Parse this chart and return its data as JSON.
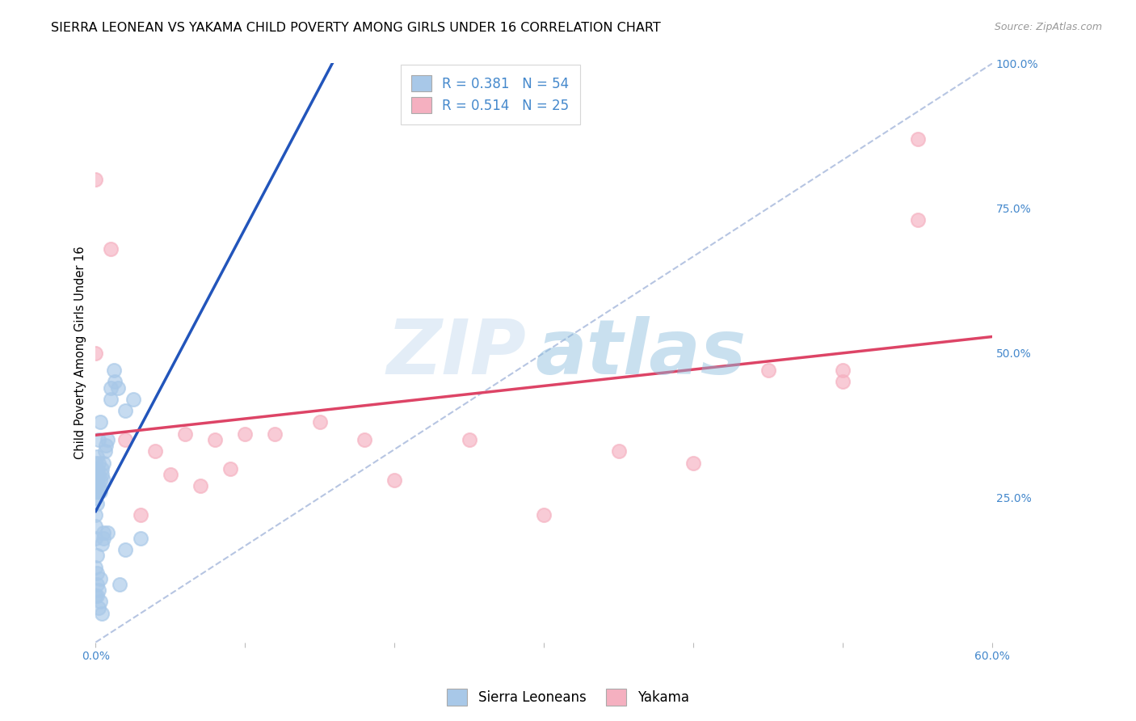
{
  "title": "SIERRA LEONEAN VS YAKAMA CHILD POVERTY AMONG GIRLS UNDER 16 CORRELATION CHART",
  "source": "Source: ZipAtlas.com",
  "ylabel": "Child Poverty Among Girls Under 16",
  "watermark_zip": "ZIP",
  "watermark_atlas": "atlas",
  "xlim": [
    0.0,
    0.6
  ],
  "ylim": [
    0.0,
    1.0
  ],
  "xtick_pos": [
    0.0,
    0.1,
    0.2,
    0.3,
    0.4,
    0.5,
    0.6
  ],
  "xtick_labels": [
    "0.0%",
    "",
    "",
    "",
    "",
    "",
    "60.0%"
  ],
  "ytick_pos": [
    0.0,
    0.25,
    0.5,
    0.75,
    1.0
  ],
  "ytick_labels": [
    "",
    "25.0%",
    "50.0%",
    "75.0%",
    "100.0%"
  ],
  "blue_scatter_color": "#a8c8e8",
  "pink_scatter_color": "#f5b0c0",
  "blue_line_color": "#2255bb",
  "pink_line_color": "#dd4466",
  "dashed_line_color": "#aabbdd",
  "axis_tick_color": "#4488cc",
  "grid_color": "#cccccc",
  "background_color": "#ffffff",
  "legend_R_blue": "R = 0.381",
  "legend_N_blue": "N = 54",
  "legend_R_pink": "R = 0.514",
  "legend_N_pink": "N = 25",
  "legend_label_blue": "Sierra Leoneans",
  "legend_label_pink": "Yakama",
  "sierra_x": [
    0.0,
    0.0,
    0.0,
    0.0,
    0.0,
    0.0,
    0.0,
    0.0,
    0.0,
    0.0,
    0.001,
    0.001,
    0.001,
    0.001,
    0.001,
    0.001,
    0.001,
    0.001,
    0.002,
    0.002,
    0.002,
    0.002,
    0.002,
    0.003,
    0.003,
    0.003,
    0.003,
    0.004,
    0.004,
    0.004,
    0.005,
    0.005,
    0.005,
    0.006,
    0.007,
    0.008,
    0.01,
    0.01,
    0.012,
    0.013,
    0.015,
    0.016,
    0.02,
    0.02,
    0.025,
    0.03,
    0.0,
    0.0,
    0.001,
    0.002,
    0.003,
    0.004,
    0.005,
    0.008
  ],
  "sierra_y": [
    0.3,
    0.28,
    0.26,
    0.29,
    0.31,
    0.25,
    0.27,
    0.22,
    0.2,
    0.18,
    0.3,
    0.28,
    0.26,
    0.24,
    0.15,
    0.12,
    0.1,
    0.08,
    0.29,
    0.27,
    0.31,
    0.09,
    0.06,
    0.28,
    0.26,
    0.11,
    0.07,
    0.3,
    0.29,
    0.05,
    0.31,
    0.28,
    0.18,
    0.33,
    0.34,
    0.35,
    0.44,
    0.42,
    0.47,
    0.45,
    0.44,
    0.1,
    0.4,
    0.16,
    0.42,
    0.18,
    0.13,
    0.08,
    0.32,
    0.35,
    0.38,
    0.17,
    0.19,
    0.19
  ],
  "yakama_x": [
    0.0,
    0.0,
    0.01,
    0.02,
    0.03,
    0.04,
    0.05,
    0.06,
    0.07,
    0.08,
    0.09,
    0.1,
    0.12,
    0.15,
    0.18,
    0.2,
    0.25,
    0.3,
    0.35,
    0.4,
    0.45,
    0.5,
    0.5,
    0.55,
    0.55
  ],
  "yakama_y": [
    0.5,
    0.8,
    0.68,
    0.35,
    0.22,
    0.33,
    0.29,
    0.36,
    0.27,
    0.35,
    0.3,
    0.36,
    0.36,
    0.38,
    0.35,
    0.28,
    0.35,
    0.22,
    0.33,
    0.31,
    0.47,
    0.47,
    0.45,
    0.73,
    0.87
  ],
  "title_fontsize": 11.5,
  "axis_label_fontsize": 10.5,
  "tick_fontsize": 10,
  "legend_fontsize": 12
}
